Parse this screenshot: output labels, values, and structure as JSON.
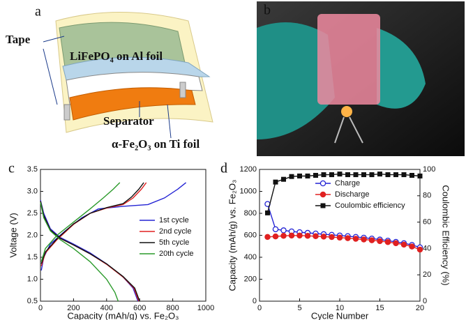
{
  "panels": {
    "a": {
      "label": "a",
      "tape": "Tape",
      "cathode": "LiFePO₄ on Al foil",
      "separator": "Separator",
      "anode": "α-Fe₂O₃ on Ti foil"
    },
    "b": {
      "label": "b"
    }
  },
  "chart_data": [
    {
      "type": "line",
      "panel": "c",
      "xlabel": "Capacity (mAh/g) vs. Fe₂O₃",
      "ylabel": "Voltage (V)",
      "xlim": [
        0,
        1000
      ],
      "xticks": [
        0,
        200,
        400,
        600,
        800,
        1000
      ],
      "ylim": [
        0.5,
        3.5
      ],
      "yticks": [
        {
          "value": 0.5,
          "label": "0.5"
        },
        {
          "value": 1,
          "label": "1.0"
        },
        {
          "value": 1.5,
          "label": "1.5"
        },
        {
          "value": 2,
          "label": "2.0"
        },
        {
          "value": 2.5,
          "label": "2.5"
        },
        {
          "value": 3,
          "label": "3.0"
        },
        {
          "value": 3.5,
          "label": "3.5"
        }
      ],
      "legend": "right",
      "series": [
        {
          "name": "1st cycle",
          "color": "#2323d4",
          "x": [
            0,
            20,
            60,
            120,
            200,
            300,
            400,
            500,
            560,
            590,
            null,
            5,
            20,
            60,
            150,
            250,
            350,
            500,
            650,
            750,
            830,
            880
          ],
          "values": [
            2.8,
            2.5,
            2.15,
            1.95,
            1.8,
            1.6,
            1.35,
            1.05,
            0.8,
            0.5,
            null,
            1.2,
            1.5,
            1.8,
            2.1,
            2.4,
            2.6,
            2.66,
            2.7,
            2.85,
            3.05,
            3.2
          ]
        },
        {
          "name": "2nd cycle",
          "color": "#e02020",
          "x": [
            0,
            20,
            60,
            120,
            200,
            300,
            400,
            500,
            565,
            595,
            null,
            5,
            30,
            100,
            200,
            300,
            400,
            500,
            560,
            610,
            640
          ],
          "values": [
            2.78,
            2.45,
            2.12,
            1.93,
            1.78,
            1.58,
            1.34,
            1.05,
            0.8,
            0.5,
            null,
            1.3,
            1.6,
            1.9,
            2.25,
            2.5,
            2.62,
            2.7,
            2.85,
            3.05,
            3.2
          ]
        },
        {
          "name": "5th cycle",
          "color": "#111111",
          "x": [
            0,
            20,
            60,
            120,
            200,
            300,
            400,
            500,
            570,
            600,
            null,
            5,
            30,
            100,
            200,
            300,
            400,
            500,
            550,
            595,
            625
          ],
          "values": [
            2.78,
            2.45,
            2.12,
            1.93,
            1.78,
            1.58,
            1.35,
            1.06,
            0.8,
            0.5,
            null,
            1.35,
            1.62,
            1.92,
            2.26,
            2.5,
            2.63,
            2.72,
            2.87,
            3.05,
            3.2
          ]
        },
        {
          "name": "20th cycle",
          "color": "#2a9a2a",
          "x": [
            0,
            20,
            60,
            120,
            200,
            300,
            400,
            450,
            470,
            null,
            5,
            30,
            100,
            200,
            300,
            380,
            440,
            480
          ],
          "values": [
            2.75,
            2.4,
            2.1,
            1.9,
            1.7,
            1.4,
            1.0,
            0.7,
            0.5,
            null,
            1.4,
            1.7,
            2.0,
            2.3,
            2.6,
            2.85,
            3.05,
            3.2
          ]
        }
      ]
    },
    {
      "type": "line",
      "panel": "d",
      "xlabel": "Cycle Number",
      "ylabel": "Capacity (mAh/g) vs. Fe₂O₃",
      "y2label": "Coulombic Efficiency (%)",
      "xlim": [
        0,
        20
      ],
      "xticks": [
        0,
        5,
        10,
        15,
        20
      ],
      "ylim": [
        0,
        1200
      ],
      "yticks": [
        0,
        200,
        400,
        600,
        800,
        1000,
        1200
      ],
      "y2lim": [
        0,
        100
      ],
      "y2ticks": [
        0,
        20,
        40,
        60,
        80,
        100
      ],
      "legend": "upper right",
      "x": [
        1,
        2,
        3,
        4,
        5,
        6,
        7,
        8,
        9,
        10,
        11,
        12,
        13,
        14,
        15,
        16,
        17,
        18,
        19,
        20
      ],
      "series": [
        {
          "name": "Charge",
          "color": "#2323d4",
          "marker": "circle-open",
          "values": [
            885,
            655,
            645,
            635,
            628,
            622,
            616,
            610,
            604,
            598,
            592,
            585,
            578,
            570,
            561,
            551,
            540,
            528,
            512,
            490
          ]
        },
        {
          "name": "Discharge",
          "color": "#e02020",
          "marker": "circle",
          "values": [
            585,
            590,
            595,
            598,
            598,
            595,
            592,
            588,
            584,
            579,
            574,
            568,
            562,
            555,
            547,
            538,
            528,
            515,
            498,
            470
          ]
        },
        {
          "name": "Coulombic efficiency",
          "color": "#111111",
          "marker": "square",
          "axis": "y2",
          "values": [
            67,
            90.4,
            92.5,
            94.6,
            95,
            95,
            95.5,
            96,
            96,
            96.5,
            96,
            96,
            96,
            96,
            96.5,
            96,
            96,
            96,
            95.5,
            95
          ]
        }
      ]
    }
  ]
}
